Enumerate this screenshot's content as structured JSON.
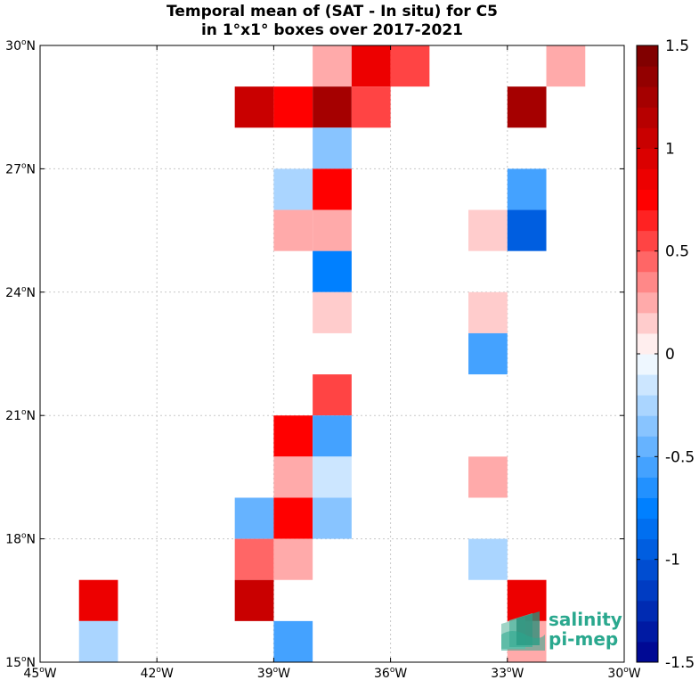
{
  "chart_data": {
    "type": "heatmap",
    "title": "Temporal mean of (SAT - In situ) for C5",
    "subtitle": "in 1°x1° boxes over 2017-2021",
    "x_range": [
      -45,
      -30
    ],
    "y_range": [
      15,
      30
    ],
    "x_ticks": [
      {
        "value": -45,
        "label": "45",
        "hemi": "W"
      },
      {
        "value": -42,
        "label": "42",
        "hemi": "W"
      },
      {
        "value": -39,
        "label": "39",
        "hemi": "W"
      },
      {
        "value": -36,
        "label": "36",
        "hemi": "W"
      },
      {
        "value": -33,
        "label": "33",
        "hemi": "W"
      },
      {
        "value": -30,
        "label": "30",
        "hemi": "W"
      }
    ],
    "y_ticks": [
      {
        "value": 15,
        "label": "15",
        "hemi": "N"
      },
      {
        "value": 18,
        "label": "18",
        "hemi": "N"
      },
      {
        "value": 21,
        "label": "21",
        "hemi": "N"
      },
      {
        "value": 24,
        "label": "24",
        "hemi": "N"
      },
      {
        "value": 27,
        "label": "27",
        "hemi": "N"
      },
      {
        "value": 30,
        "label": "30",
        "hemi": "N"
      }
    ],
    "grid": true,
    "colorbar": {
      "range": [
        -1.5,
        1.5
      ],
      "levels": 30,
      "ticks": [
        {
          "value": 1.5,
          "label": "1.5"
        },
        {
          "value": 1,
          "label": "1"
        },
        {
          "value": 0.5,
          "label": "0.5"
        },
        {
          "value": 0,
          "label": "0"
        },
        {
          "value": -0.5,
          "label": "-0.5"
        },
        {
          "value": -1,
          "label": "-1"
        },
        {
          "value": -1.5,
          "label": "-1.5"
        }
      ]
    },
    "cells": [
      {
        "lon": -38,
        "lat": 29,
        "value": 0.25
      },
      {
        "lon": -37,
        "lat": 29,
        "value": 0.85
      },
      {
        "lon": -36,
        "lat": 29,
        "value": 0.55
      },
      {
        "lon": -32,
        "lat": 29,
        "value": 0.25
      },
      {
        "lon": -40,
        "lat": 28,
        "value": 1.05
      },
      {
        "lon": -39,
        "lat": 28,
        "value": 0.7
      },
      {
        "lon": -38,
        "lat": 28,
        "value": 1.3
      },
      {
        "lon": -37,
        "lat": 28,
        "value": 0.55
      },
      {
        "lon": -33,
        "lat": 28,
        "value": 1.3
      },
      {
        "lon": -38,
        "lat": 27,
        "value": -0.35
      },
      {
        "lon": -39,
        "lat": 26,
        "value": -0.25
      },
      {
        "lon": -38,
        "lat": 26,
        "value": 0.7
      },
      {
        "lon": -33,
        "lat": 26,
        "value": -0.55
      },
      {
        "lon": -39,
        "lat": 25,
        "value": 0.25
      },
      {
        "lon": -38,
        "lat": 25,
        "value": 0.25
      },
      {
        "lon": -34,
        "lat": 25,
        "value": 0.1
      },
      {
        "lon": -33,
        "lat": 25,
        "value": -0.95
      },
      {
        "lon": -38,
        "lat": 24,
        "value": -0.75
      },
      {
        "lon": -38,
        "lat": 23,
        "value": 0.1
      },
      {
        "lon": -34,
        "lat": 23,
        "value": 0.1
      },
      {
        "lon": -34,
        "lat": 22,
        "value": -0.55
      },
      {
        "lon": -38,
        "lat": 21,
        "value": 0.55
      },
      {
        "lon": -39,
        "lat": 20,
        "value": 0.7
      },
      {
        "lon": -38,
        "lat": 20,
        "value": -0.55
      },
      {
        "lon": -39,
        "lat": 19,
        "value": 0.25
      },
      {
        "lon": -38,
        "lat": 19,
        "value": -0.15
      },
      {
        "lon": -34,
        "lat": 19,
        "value": 0.25
      },
      {
        "lon": -40,
        "lat": 18,
        "value": -0.45
      },
      {
        "lon": -39,
        "lat": 18,
        "value": 0.7
      },
      {
        "lon": -38,
        "lat": 18,
        "value": -0.35
      },
      {
        "lon": -40,
        "lat": 17,
        "value": 0.4
      },
      {
        "lon": -39,
        "lat": 17,
        "value": 0.25
      },
      {
        "lon": -34,
        "lat": 17,
        "value": -0.25
      },
      {
        "lon": -44,
        "lat": 16,
        "value": 0.9
      },
      {
        "lon": -40,
        "lat": 16,
        "value": 1.05
      },
      {
        "lon": -33,
        "lat": 16,
        "value": 0.9
      },
      {
        "lon": -44,
        "lat": 15,
        "value": -0.25
      },
      {
        "lon": -39,
        "lat": 15,
        "value": -0.55
      },
      {
        "lon": -33,
        "lat": 15,
        "value": 0.25
      }
    ]
  },
  "logo": {
    "line1": "salinity",
    "line2": "pi-mep",
    "color": "#2aa88e"
  }
}
